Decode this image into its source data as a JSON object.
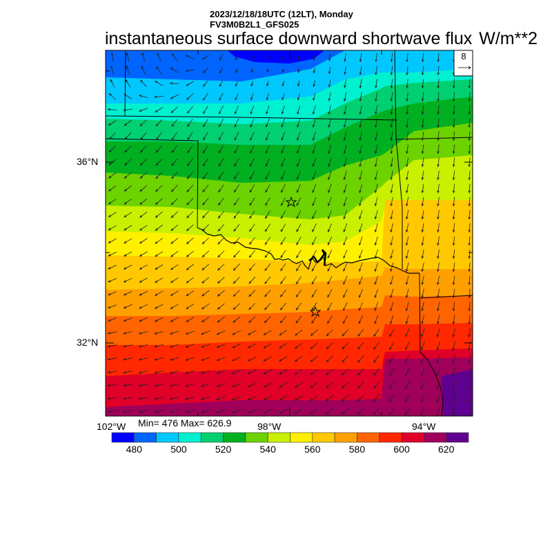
{
  "header": {
    "datetime": "2023/12/18/18UTC (12LT), Monday",
    "model": "FV3M0B2L1_GFS025",
    "title": "instantaneous surface downward shortwave flux",
    "units": "W/m**2"
  },
  "map": {
    "lat_labels": [
      "36°N",
      "32°N"
    ],
    "lon_labels": [
      "102°W",
      "98°W",
      "94°W"
    ],
    "vector_reference": "8",
    "stats": "Min= 476 Max= 626.9"
  },
  "colorbar": {
    "labels": [
      "480",
      "500",
      "520",
      "540",
      "560",
      "580",
      "600",
      "620"
    ],
    "colors": [
      "#0000ff",
      "#0064ff",
      "#00c8ff",
      "#00f0d0",
      "#00d070",
      "#00b020",
      "#6cd200",
      "#c8f000",
      "#fff000",
      "#ffc800",
      "#ffa000",
      "#ff6400",
      "#ff2800",
      "#e00028",
      "#a0005a",
      "#600090"
    ]
  }
}
